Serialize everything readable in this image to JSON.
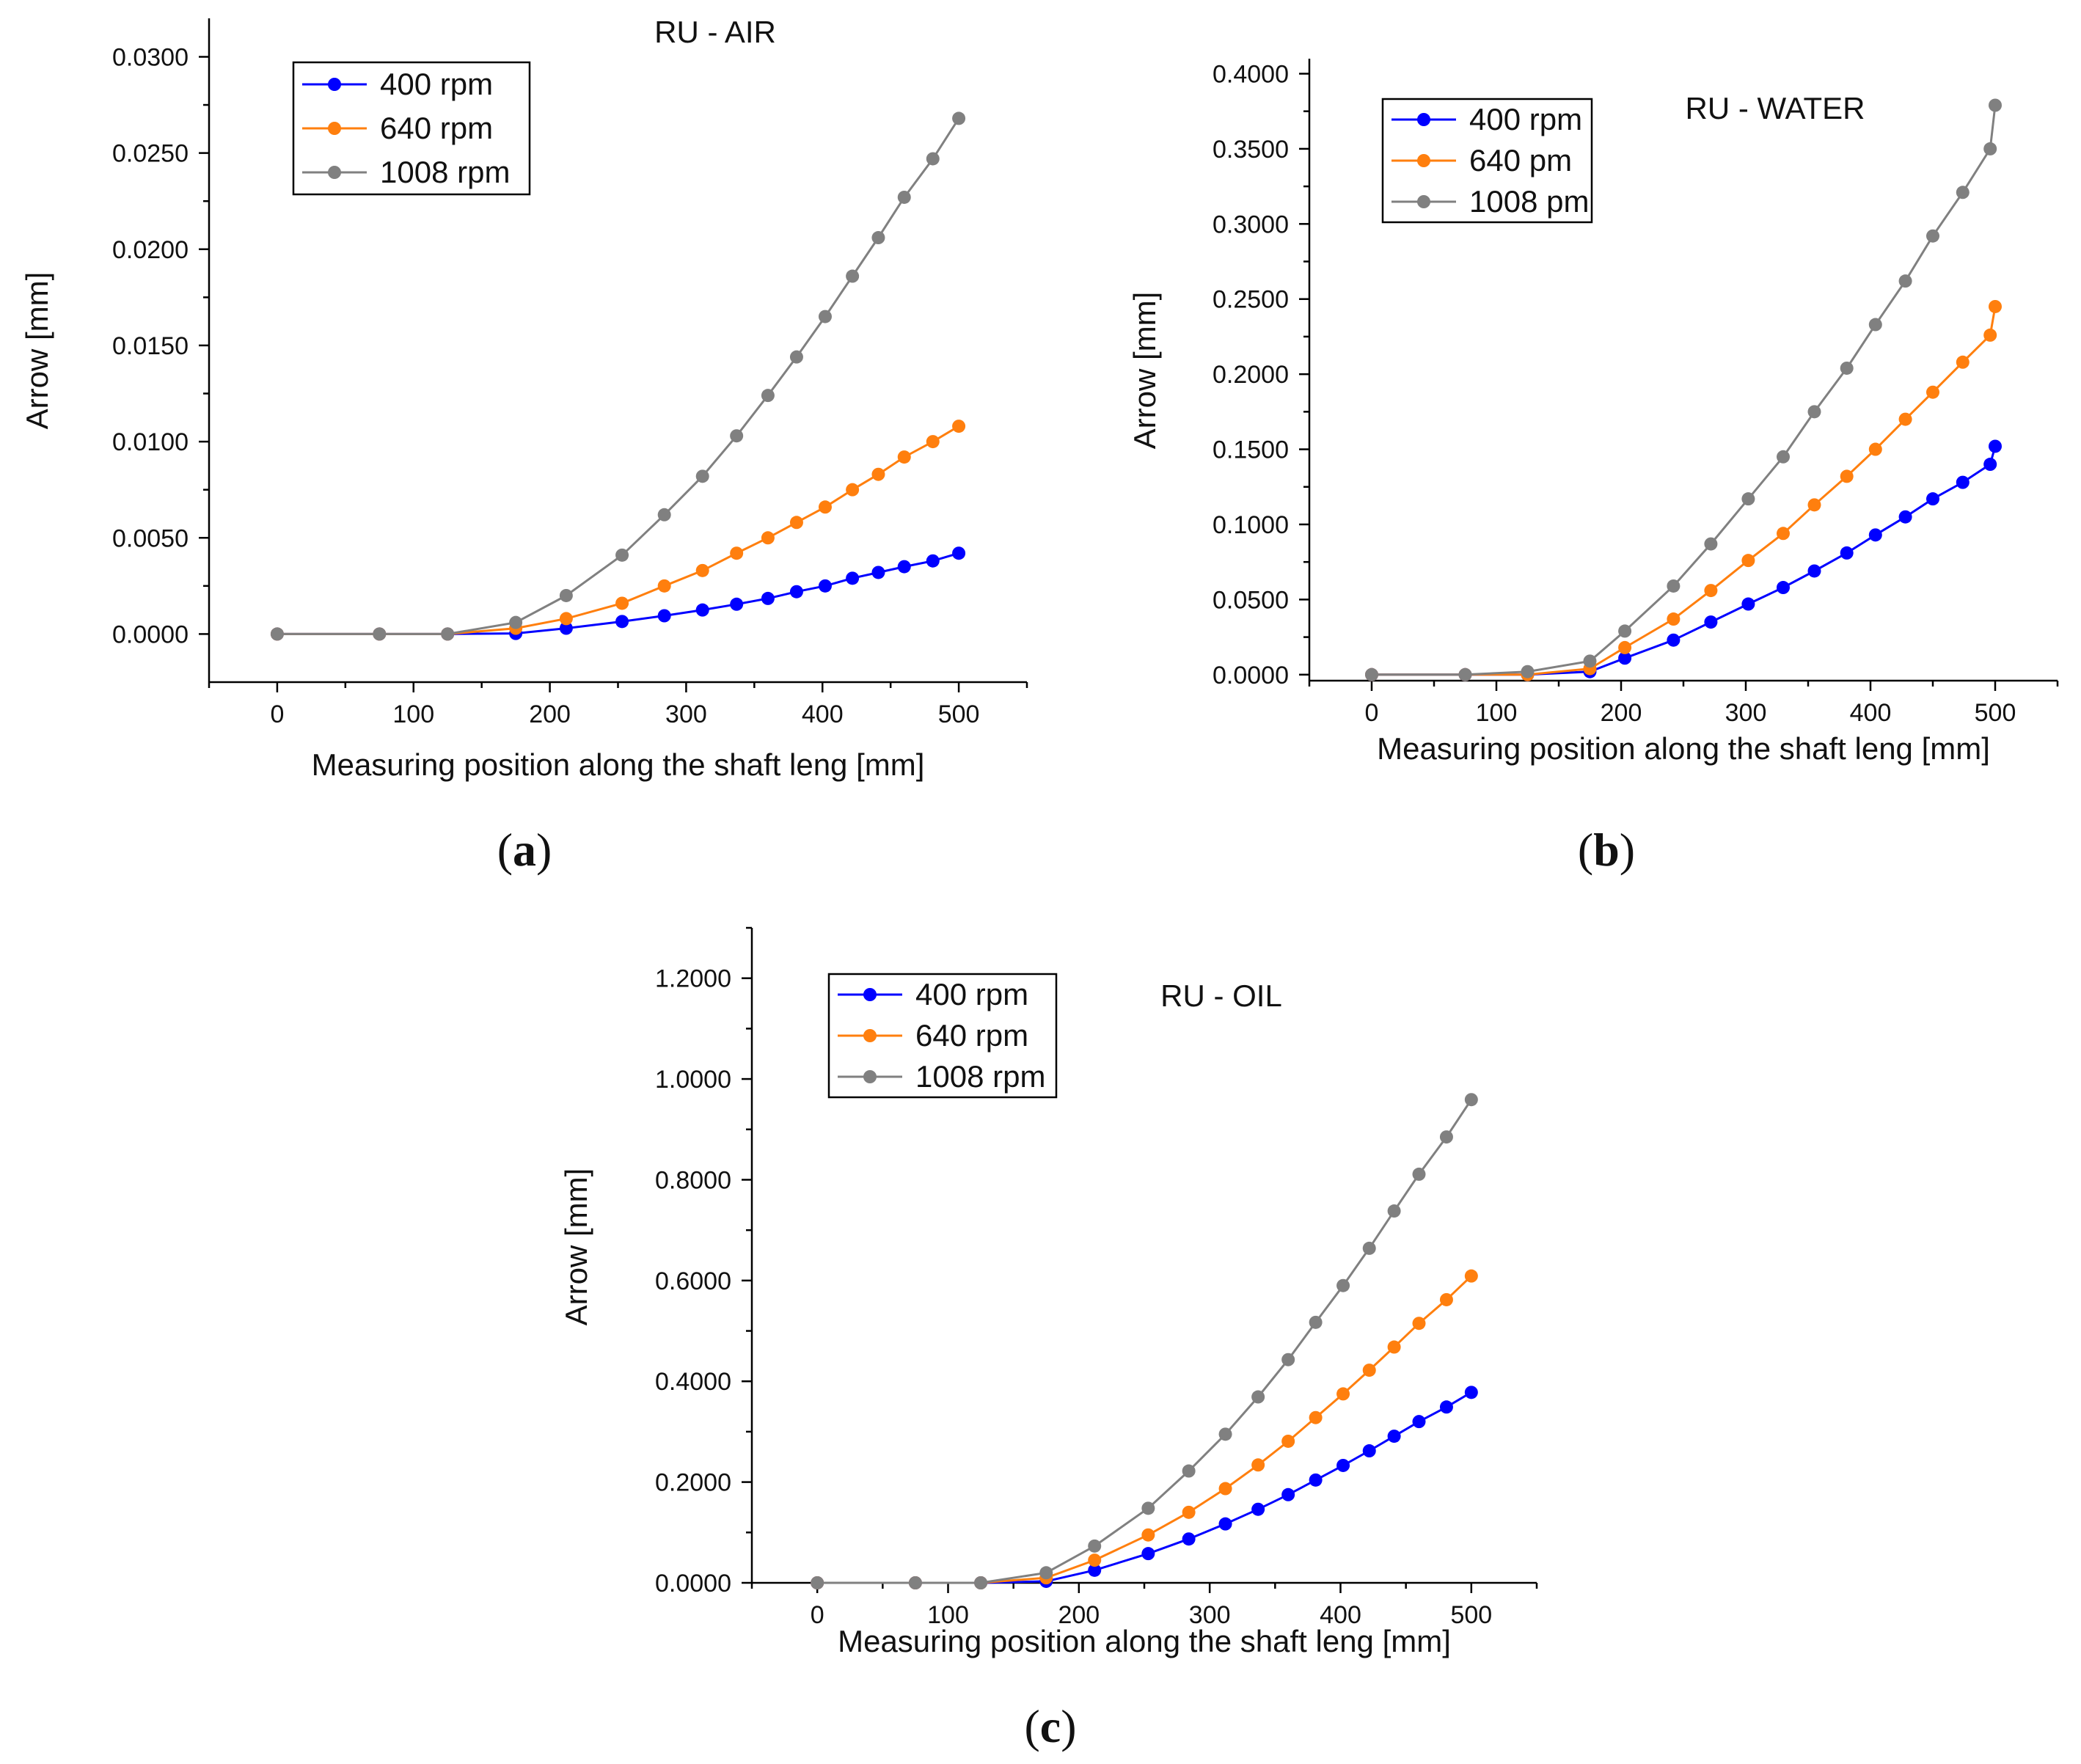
{
  "chart_data": [
    {
      "panel": "(a)",
      "panel_letter": "a",
      "type": "line",
      "title": "RU - AIR",
      "xlabel": "Measuring position along the shaft leng [mm]",
      "ylabel": "Arrow [mm]",
      "xlim": [
        -50,
        550
      ],
      "ylim": [
        -0.0025,
        0.032
      ],
      "xticks": [
        0,
        100,
        200,
        300,
        400,
        500
      ],
      "xtick_labels": [
        "0",
        "100",
        "200",
        "300",
        "400",
        "500"
      ],
      "yticks": [
        0,
        0.005,
        0.01,
        0.015,
        0.02,
        0.025,
        0.03
      ],
      "ytick_labels": [
        "0.0000",
        "0.0050",
        "0.0100",
        "0.0150",
        "0.0200",
        "0.0250",
        "0.0300"
      ],
      "x": [
        0,
        75,
        125,
        175,
        212,
        253,
        284,
        312,
        337,
        360,
        381,
        402,
        422,
        441,
        460,
        481,
        500
      ],
      "series": [
        {
          "name": "400 rpm",
          "color": "#0000ff",
          "values": [
            0,
            0,
            0,
            3e-05,
            0.0003,
            0.00065,
            0.00095,
            0.00125,
            0.00155,
            0.00185,
            0.0022,
            0.0025,
            0.0029,
            0.0032,
            0.0035,
            0.0038,
            0.0042
          ]
        },
        {
          "name": "640 rpm",
          "color": "#ff7f0e",
          "values": [
            0,
            0,
            0,
            0.0003,
            0.0008,
            0.0016,
            0.0025,
            0.0033,
            0.0042,
            0.005,
            0.0058,
            0.0066,
            0.0075,
            0.0083,
            0.0092,
            0.01,
            0.0108
          ]
        },
        {
          "name": "1008 rpm",
          "color": "#808080",
          "values": [
            0,
            0,
            0,
            0.0006,
            0.002,
            0.0041,
            0.0062,
            0.0082,
            0.0103,
            0.0124,
            0.0144,
            0.0165,
            0.0186,
            0.0206,
            0.0227,
            0.0247,
            0.0268
          ]
        }
      ],
      "legend": {
        "placement": "top-left",
        "labels": [
          "400 rpm",
          "640 rpm",
          "1008 rpm"
        ]
      }
    },
    {
      "panel": "(b)",
      "panel_letter": "b",
      "type": "line",
      "title": "RU - WATER",
      "xlabel": "Measuring position along the shaft leng [mm]",
      "ylabel": "Arrow [mm]",
      "xlim": [
        -50,
        550
      ],
      "ylim": [
        -0.004,
        0.41
      ],
      "xticks": [
        0,
        100,
        200,
        300,
        400,
        500
      ],
      "xtick_labels": [
        "0",
        "100",
        "200",
        "300",
        "400",
        "500"
      ],
      "yticks": [
        0,
        0.05,
        0.1,
        0.15,
        0.2,
        0.25,
        0.3,
        0.35,
        0.4
      ],
      "ytick_labels": [
        "0.0000",
        "0.0500",
        "0.1000",
        "0.1500",
        "0.2000",
        "0.2500",
        "0.3000",
        "0.3500",
        "0.4000"
      ],
      "x": [
        0,
        75,
        125,
        175,
        203,
        242,
        272,
        302,
        330,
        355,
        381,
        404,
        428,
        450,
        474,
        496,
        500
      ],
      "series": [
        {
          "name": "400 rpm",
          "color": "#0000ff",
          "values": [
            0,
            0,
            0,
            0.002,
            0.011,
            0.023,
            0.035,
            0.047,
            0.058,
            0.069,
            0.081,
            0.093,
            0.105,
            0.117,
            0.128,
            0.14,
            0.152
          ]
        },
        {
          "name": "640 pm",
          "color": "#ff7f0e",
          "values": [
            0,
            0,
            0,
            0.004,
            0.018,
            0.037,
            0.056,
            0.076,
            0.094,
            0.113,
            0.132,
            0.15,
            0.17,
            0.188,
            0.208,
            0.226,
            0.245
          ]
        },
        {
          "name": "1008 pm",
          "color": "#808080",
          "values": [
            0,
            0,
            0.002,
            0.009,
            0.029,
            0.059,
            0.087,
            0.117,
            0.145,
            0.175,
            0.204,
            0.233,
            0.262,
            0.292,
            0.321,
            0.35,
            0.379
          ]
        }
      ],
      "legend": {
        "placement": "top-left",
        "labels": [
          "400 rpm",
          "640 pm",
          "1008 pm"
        ]
      }
    },
    {
      "panel": "(c)",
      "panel_letter": "c",
      "type": "line",
      "title": "RU - OIL",
      "xlabel": "Measuring position along the shaft leng [mm]",
      "ylabel": "Arrow [mm]",
      "xlim": [
        -50,
        550
      ],
      "ylim": [
        0,
        1.3
      ],
      "xticks": [
        0,
        100,
        200,
        300,
        400,
        500
      ],
      "xtick_labels": [
        "0",
        "100",
        "200",
        "300",
        "400",
        "500"
      ],
      "yticks": [
        0,
        0.2,
        0.4,
        0.6,
        0.8,
        1.0,
        1.2
      ],
      "ytick_labels": [
        "0.0000",
        "0.2000",
        "0.4000",
        "0.6000",
        "0.8000",
        "1.0000",
        "1.2000"
      ],
      "x": [
        0,
        75,
        125,
        175,
        212,
        253,
        284,
        312,
        337,
        360,
        381,
        402,
        422,
        441,
        460,
        481,
        500
      ],
      "series": [
        {
          "name": "400 rpm",
          "color": "#0000ff",
          "values": [
            0,
            0,
            0,
            0.003,
            0.025,
            0.058,
            0.087,
            0.117,
            0.146,
            0.175,
            0.204,
            0.233,
            0.262,
            0.291,
            0.32,
            0.349,
            0.378
          ]
        },
        {
          "name": "640 rpm",
          "color": "#ff7f0e",
          "values": [
            0,
            0,
            0,
            0.01,
            0.045,
            0.095,
            0.14,
            0.187,
            0.234,
            0.281,
            0.328,
            0.375,
            0.422,
            0.468,
            0.515,
            0.562,
            0.609
          ]
        },
        {
          "name": "1008 rpm",
          "color": "#808080",
          "values": [
            0,
            0,
            0,
            0.02,
            0.073,
            0.148,
            0.222,
            0.295,
            0.369,
            0.443,
            0.517,
            0.59,
            0.664,
            0.738,
            0.811,
            0.885,
            0.959
          ]
        }
      ],
      "legend": {
        "placement": "top-left",
        "labels": [
          "400 rpm",
          "640 rpm",
          "1008 rpm"
        ]
      }
    }
  ]
}
